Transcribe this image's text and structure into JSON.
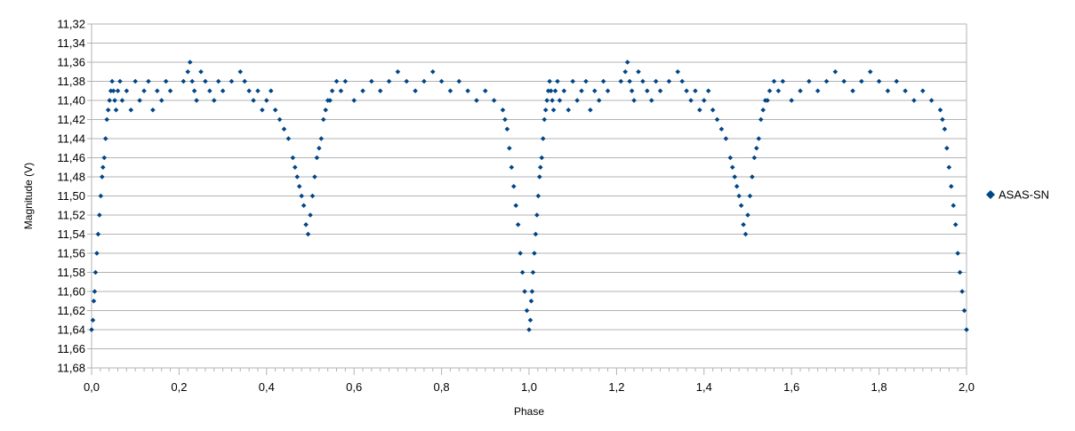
{
  "chart_data": {
    "type": "scatter",
    "title": "",
    "xlabel": "Phase",
    "ylabel": "Magnitude (V)",
    "xlim": [
      0.0,
      2.0
    ],
    "ylim": [
      11.32,
      11.68
    ],
    "y_reversed": true,
    "grid": "horizontal",
    "legend_position": "right",
    "x_ticks": [
      "0,0",
      "0,2",
      "0,4",
      "0,6",
      "0,8",
      "1,0",
      "1,2",
      "1,4",
      "1,6",
      "1,8",
      "2,0"
    ],
    "x_tick_values": [
      0.0,
      0.2,
      0.4,
      0.6,
      0.8,
      1.0,
      1.2,
      1.4,
      1.6,
      1.8,
      2.0
    ],
    "y_ticks": [
      "11,32",
      "11,34",
      "11,36",
      "11,38",
      "11,40",
      "11,42",
      "11,44",
      "11,46",
      "11,48",
      "11,50",
      "11,52",
      "11,54",
      "11,56",
      "11,58",
      "11,60",
      "11,62",
      "11,64",
      "11,66",
      "11,68"
    ],
    "y_tick_values": [
      11.32,
      11.34,
      11.36,
      11.38,
      11.4,
      11.42,
      11.44,
      11.46,
      11.48,
      11.5,
      11.52,
      11.54,
      11.56,
      11.58,
      11.6,
      11.62,
      11.64,
      11.66,
      11.68
    ],
    "series": [
      {
        "name": "ASAS-SN",
        "color": "#004586",
        "marker": "diamond",
        "x": [
          0.0,
          0.003,
          0.005,
          0.007,
          0.009,
          0.012,
          0.015,
          0.018,
          0.021,
          0.024,
          0.026,
          0.029,
          0.032,
          0.035,
          0.038,
          0.041,
          0.044,
          0.047,
          0.05,
          0.053,
          0.056,
          0.06,
          0.065,
          0.07,
          0.08,
          0.09,
          0.1,
          0.11,
          0.12,
          0.13,
          0.14,
          0.15,
          0.16,
          0.17,
          0.18,
          0.21,
          0.22,
          0.225,
          0.23,
          0.235,
          0.24,
          0.25,
          0.26,
          0.27,
          0.28,
          0.29,
          0.3,
          0.32,
          0.34,
          0.35,
          0.36,
          0.37,
          0.38,
          0.39,
          0.4,
          0.41,
          0.42,
          0.43,
          0.44,
          0.45,
          0.46,
          0.465,
          0.47,
          0.475,
          0.48,
          0.485,
          0.49,
          0.495,
          0.5,
          0.505,
          0.51,
          0.515,
          0.52,
          0.525,
          0.53,
          0.535,
          0.54,
          0.545,
          0.55,
          0.56,
          0.57,
          0.58,
          0.6,
          0.62,
          0.64,
          0.66,
          0.68,
          0.7,
          0.72,
          0.74,
          0.76,
          0.78,
          0.8,
          0.82,
          0.84,
          0.86,
          0.88,
          0.9,
          0.92,
          0.94,
          0.945,
          0.95,
          0.955,
          0.96,
          0.965,
          0.97,
          0.975,
          0.98,
          0.985,
          0.99,
          0.995,
          1.0,
          1.003,
          1.005,
          1.007,
          1.009,
          1.012,
          1.015,
          1.018,
          1.021,
          1.024,
          1.026,
          1.029,
          1.032,
          1.035,
          1.038,
          1.041,
          1.044,
          1.047,
          1.05,
          1.053,
          1.056,
          1.06,
          1.065,
          1.07,
          1.08,
          1.09,
          1.1,
          1.11,
          1.12,
          1.13,
          1.14,
          1.15,
          1.16,
          1.17,
          1.18,
          1.21,
          1.22,
          1.225,
          1.23,
          1.235,
          1.24,
          1.25,
          1.26,
          1.27,
          1.28,
          1.29,
          1.3,
          1.32,
          1.34,
          1.35,
          1.36,
          1.37,
          1.38,
          1.39,
          1.4,
          1.41,
          1.42,
          1.43,
          1.44,
          1.45,
          1.46,
          1.465,
          1.47,
          1.475,
          1.48,
          1.485,
          1.49,
          1.495,
          1.5,
          1.505,
          1.51,
          1.515,
          1.52,
          1.525,
          1.53,
          1.535,
          1.54,
          1.545,
          1.55,
          1.56,
          1.57,
          1.58,
          1.6,
          1.62,
          1.64,
          1.66,
          1.68,
          1.7,
          1.72,
          1.74,
          1.76,
          1.78,
          1.8,
          1.82,
          1.84,
          1.86,
          1.88,
          1.9,
          1.92,
          1.94,
          1.945,
          1.95,
          1.955,
          1.96,
          1.965,
          1.97,
          1.975,
          1.98,
          1.985,
          1.99,
          1.995,
          2.0
        ],
        "y": [
          11.64,
          11.63,
          11.61,
          11.6,
          11.58,
          11.56,
          11.54,
          11.52,
          11.5,
          11.48,
          11.47,
          11.46,
          11.44,
          11.42,
          11.41,
          11.4,
          11.39,
          11.38,
          11.39,
          11.4,
          11.41,
          11.39,
          11.38,
          11.4,
          11.39,
          11.41,
          11.38,
          11.4,
          11.39,
          11.38,
          11.41,
          11.39,
          11.4,
          11.38,
          11.39,
          11.38,
          11.37,
          11.36,
          11.38,
          11.39,
          11.4,
          11.37,
          11.38,
          11.39,
          11.4,
          11.38,
          11.39,
          11.38,
          11.37,
          11.38,
          11.39,
          11.4,
          11.39,
          11.41,
          11.4,
          11.39,
          11.41,
          11.42,
          11.43,
          11.44,
          11.46,
          11.47,
          11.48,
          11.49,
          11.5,
          11.51,
          11.53,
          11.54,
          11.52,
          11.5,
          11.48,
          11.46,
          11.45,
          11.44,
          11.42,
          11.41,
          11.4,
          11.4,
          11.39,
          11.38,
          11.39,
          11.38,
          11.4,
          11.39,
          11.38,
          11.39,
          11.38,
          11.37,
          11.38,
          11.39,
          11.38,
          11.37,
          11.38,
          11.39,
          11.38,
          11.39,
          11.4,
          11.39,
          11.4,
          11.41,
          11.42,
          11.43,
          11.45,
          11.47,
          11.49,
          11.51,
          11.53,
          11.56,
          11.58,
          11.6,
          11.62,
          11.64,
          11.63,
          11.61,
          11.6,
          11.58,
          11.56,
          11.54,
          11.52,
          11.5,
          11.48,
          11.47,
          11.46,
          11.44,
          11.42,
          11.41,
          11.4,
          11.39,
          11.38,
          11.39,
          11.4,
          11.41,
          11.39,
          11.38,
          11.4,
          11.39,
          11.41,
          11.38,
          11.4,
          11.39,
          11.38,
          11.41,
          11.39,
          11.4,
          11.38,
          11.39,
          11.38,
          11.37,
          11.36,
          11.38,
          11.39,
          11.4,
          11.37,
          11.38,
          11.39,
          11.4,
          11.38,
          11.39,
          11.38,
          11.37,
          11.38,
          11.39,
          11.4,
          11.39,
          11.41,
          11.4,
          11.39,
          11.41,
          11.42,
          11.43,
          11.44,
          11.46,
          11.47,
          11.48,
          11.49,
          11.5,
          11.51,
          11.53,
          11.54,
          11.52,
          11.5,
          11.48,
          11.46,
          11.45,
          11.44,
          11.42,
          11.41,
          11.4,
          11.4,
          11.39,
          11.38,
          11.39,
          11.38,
          11.4,
          11.39,
          11.38,
          11.39,
          11.38,
          11.37,
          11.38,
          11.39,
          11.38,
          11.37,
          11.38,
          11.39,
          11.38,
          11.39,
          11.4,
          11.39,
          11.4,
          11.41,
          11.42,
          11.43,
          11.45,
          11.47,
          11.49,
          11.51,
          11.53,
          11.56,
          11.58,
          11.6,
          11.62,
          11.64
        ]
      }
    ]
  }
}
